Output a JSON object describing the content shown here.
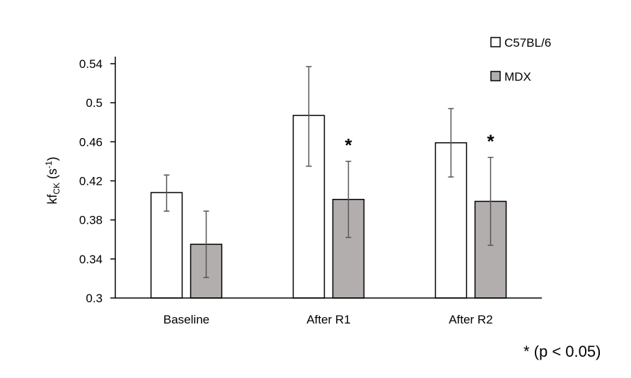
{
  "chart_data": {
    "type": "bar",
    "categories": [
      "Baseline",
      "After R1",
      "After R2"
    ],
    "series": [
      {
        "name": "C57BL/6",
        "values": [
          0.408,
          0.487,
          0.459
        ],
        "error_low": [
          0.389,
          0.435,
          0.424
        ],
        "error_high": [
          0.426,
          0.537,
          0.494
        ],
        "significance": [
          "",
          "",
          ""
        ],
        "color": "#ffffff"
      },
      {
        "name": "MDX",
        "values": [
          0.355,
          0.401,
          0.399
        ],
        "error_low": [
          0.321,
          0.362,
          0.354
        ],
        "error_high": [
          0.389,
          0.44,
          0.444
        ],
        "significance": [
          "",
          "*",
          "*"
        ],
        "color": "#b3aeae"
      }
    ],
    "ylim": [
      0.3,
      0.54
    ],
    "yticks": [
      "0.3",
      "0.34",
      "0.38",
      "0.42",
      "0.46",
      "0.5",
      "0.54"
    ],
    "ylabel_main": "kf",
    "ylabel_sub": "CK",
    "ylabel_unit_open": " (s",
    "ylabel_sup": "-1",
    "ylabel_unit_close": ")",
    "legend_position": "top-right",
    "grid": false
  },
  "footnote": "* (p < 0.05)"
}
